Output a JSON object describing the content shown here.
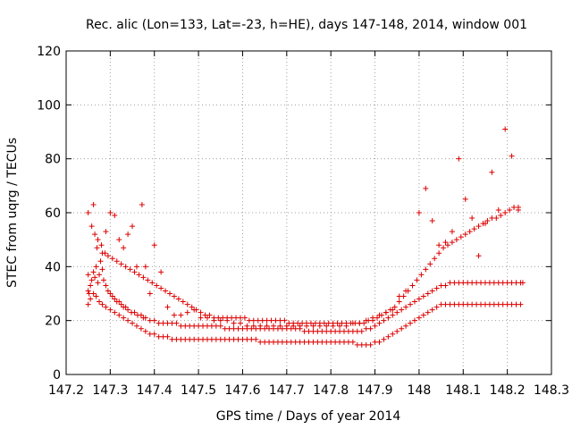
{
  "chart_data": {
    "type": "scatter",
    "title": "Rec. alic (Lon=133, Lat=-23, h=HE), days 147-148, 2014, window 001",
    "xlabel": "GPS time / Days of year 2014",
    "ylabel": "STEC from uqrg / TECUs",
    "xlim": [
      147.2,
      148.3
    ],
    "ylim": [
      0,
      120
    ],
    "xticks": [
      "147.2",
      "147.3",
      "147.4",
      "147.5",
      "147.6",
      "147.7",
      "147.8",
      "147.9",
      "148",
      "148.1",
      "148.2",
      "148.3"
    ],
    "yticks": [
      "0",
      "20",
      "40",
      "60",
      "80",
      "100",
      "120"
    ],
    "grid": true,
    "legend": "none",
    "marker": "plus",
    "color": "#dd0000",
    "series": [
      {
        "x": [
          147.25,
          147.252,
          147.255,
          147.258,
          147.262,
          147.265,
          147.268,
          147.272,
          147.275,
          147.278,
          147.282,
          147.285,
          147.29,
          147.295,
          147.3,
          147.305,
          147.31,
          147.315,
          147.32,
          147.325,
          147.33,
          147.335,
          147.34,
          147.348,
          147.355,
          147.362,
          147.37,
          147.375,
          147.38,
          147.39,
          147.4,
          147.41,
          147.42,
          147.43,
          147.44,
          147.45,
          147.46,
          147.47,
          147.48,
          147.49,
          147.5,
          147.51,
          147.52,
          147.53,
          147.54,
          147.55,
          147.56,
          147.57,
          147.58,
          147.59,
          147.6,
          147.61,
          147.62,
          147.63,
          147.64,
          147.65,
          147.66,
          147.67,
          147.68,
          147.69,
          147.7,
          147.71,
          147.72,
          147.73,
          147.74,
          147.75,
          147.76,
          147.77,
          147.78,
          147.79,
          147.8,
          147.81,
          147.82,
          147.83,
          147.84,
          147.85,
          147.86,
          147.87,
          147.88,
          147.89,
          147.9,
          147.91,
          147.92,
          147.93,
          147.94,
          147.95,
          147.96,
          147.97,
          147.98,
          147.99,
          148.0,
          148.01,
          148.02,
          148.03,
          148.04,
          148.05,
          148.06,
          148.07,
          148.08,
          148.09,
          148.1,
          148.11,
          148.12,
          148.13,
          148.14,
          148.15,
          148.16,
          148.17,
          148.18,
          148.19,
          148.2,
          148.21,
          148.22,
          148.23,
          148.235
        ],
        "y": [
          31,
          30,
          33,
          35,
          38,
          36,
          40,
          34,
          37,
          42,
          39,
          35,
          33,
          31,
          30,
          29,
          28,
          27,
          27,
          26,
          25,
          25,
          24,
          23,
          23,
          22,
          22,
          21,
          21,
          20,
          20,
          19,
          19,
          19,
          19,
          19,
          18,
          18,
          18,
          18,
          18,
          18,
          18,
          18,
          18,
          18,
          17,
          17,
          17,
          17,
          17,
          17,
          17,
          17,
          17,
          17,
          17,
          17,
          17,
          17,
          17,
          17,
          17,
          17,
          16,
          16,
          16,
          16,
          16,
          16,
          16,
          16,
          16,
          16,
          16,
          16,
          16,
          16,
          17,
          17,
          18,
          19,
          20,
          21,
          22,
          23,
          24,
          25,
          26,
          27,
          28,
          29,
          30,
          31,
          32,
          33,
          33,
          34,
          34,
          34,
          34,
          34,
          34,
          34,
          34,
          34,
          34,
          34,
          34,
          34,
          34,
          34,
          34,
          34,
          34
        ]
      },
      {
        "x": [
          147.25,
          147.255,
          147.262,
          147.268,
          147.275,
          147.282,
          147.29,
          147.3,
          147.31,
          147.32,
          147.33,
          147.34,
          147.35,
          147.36,
          147.37,
          147.38,
          147.39,
          147.4,
          147.41,
          147.42,
          147.43,
          147.44,
          147.45,
          147.46,
          147.47,
          147.48,
          147.49,
          147.5,
          147.51,
          147.52,
          147.53,
          147.54,
          147.55,
          147.56,
          147.57,
          147.58,
          147.59,
          147.6,
          147.61,
          147.62,
          147.63,
          147.64,
          147.65,
          147.66,
          147.67,
          147.68,
          147.69,
          147.7,
          147.71,
          147.72,
          147.73,
          147.74,
          147.75,
          147.76,
          147.77,
          147.78,
          147.79,
          147.8,
          147.81,
          147.82,
          147.83,
          147.84,
          147.85,
          147.86,
          147.87,
          147.88,
          147.89,
          147.9,
          147.91,
          147.92,
          147.93,
          147.94,
          147.95,
          147.96,
          147.97,
          147.98,
          147.99,
          148.0,
          148.01,
          148.02,
          148.03,
          148.04,
          148.05,
          148.06,
          148.07,
          148.08,
          148.09,
          148.1,
          148.11,
          148.12,
          148.13,
          148.14,
          148.15,
          148.16,
          148.17,
          148.18,
          148.19,
          148.2,
          148.21,
          148.22,
          148.23
        ],
        "y": [
          26,
          28,
          30,
          29,
          27,
          26,
          25,
          24,
          23,
          22,
          21,
          20,
          19,
          18,
          17,
          16,
          15,
          15,
          14,
          14,
          14,
          13,
          13,
          13,
          13,
          13,
          13,
          13,
          13,
          13,
          13,
          13,
          13,
          13,
          13,
          13,
          13,
          13,
          13,
          13,
          13,
          12,
          12,
          12,
          12,
          12,
          12,
          12,
          12,
          12,
          12,
          12,
          12,
          12,
          12,
          12,
          12,
          12,
          12,
          12,
          12,
          12,
          12,
          11,
          11,
          11,
          11,
          12,
          12,
          13,
          14,
          15,
          16,
          17,
          18,
          19,
          20,
          21,
          22,
          23,
          24,
          25,
          26,
          26,
          26,
          26,
          26,
          26,
          26,
          26,
          26,
          26,
          26,
          26,
          26,
          26,
          26,
          26,
          26,
          26,
          26
        ]
      },
      {
        "x": [
          147.25,
          147.258,
          147.265,
          147.272,
          147.28,
          147.288,
          147.295,
          147.305,
          147.315,
          147.325,
          147.335,
          147.345,
          147.355,
          147.365,
          147.375,
          147.385,
          147.395,
          147.405,
          147.415,
          147.425,
          147.435,
          147.445,
          147.455,
          147.465,
          147.475,
          147.485,
          147.495,
          147.505,
          147.515,
          147.525,
          147.535,
          147.545,
          147.555,
          147.565,
          147.575,
          147.585,
          147.595,
          147.605,
          147.615,
          147.625,
          147.635,
          147.645,
          147.655,
          147.665,
          147.675,
          147.685,
          147.695,
          147.705,
          147.715,
          147.725,
          147.735,
          147.745,
          147.755,
          147.765,
          147.775,
          147.785,
          147.795,
          147.805,
          147.815,
          147.825,
          147.835,
          147.845,
          147.855,
          147.865,
          147.875,
          147.885,
          147.895,
          147.905,
          147.915,
          147.925,
          147.935,
          147.945,
          147.955,
          147.965,
          147.975,
          147.985,
          147.995,
          148.005,
          148.015,
          148.025,
          148.035,
          148.045,
          148.055,
          148.065,
          148.075,
          148.085,
          148.095,
          148.105,
          148.115,
          148.125,
          148.135,
          148.145,
          148.155,
          148.165,
          148.175,
          148.185,
          148.195,
          148.205,
          148.215,
          148.225
        ],
        "y": [
          60,
          55,
          52,
          50,
          48,
          45,
          44,
          43,
          42,
          41,
          40,
          39,
          38,
          37,
          36,
          35,
          34,
          33,
          32,
          31,
          30,
          29,
          28,
          27,
          26,
          25,
          24,
          23,
          22,
          22,
          21,
          21,
          21,
          21,
          21,
          21,
          21,
          21,
          20,
          20,
          20,
          20,
          20,
          20,
          20,
          20,
          20,
          19,
          19,
          19,
          19,
          19,
          19,
          19,
          19,
          19,
          19,
          19,
          19,
          19,
          19,
          19,
          19,
          19,
          19,
          20,
          20,
          21,
          22,
          23,
          24,
          25,
          27,
          29,
          31,
          33,
          35,
          37,
          39,
          41,
          43,
          45,
          47,
          48,
          49,
          50,
          51,
          52,
          53,
          54,
          55,
          56,
          57,
          58,
          58,
          59,
          60,
          61,
          62,
          62
        ]
      },
      {
        "x": [
          147.25,
          147.262,
          147.27,
          147.282,
          147.29,
          147.3,
          147.31,
          147.32,
          147.33,
          147.34,
          147.35,
          147.36,
          147.372,
          147.38,
          147.39,
          147.4,
          147.415,
          147.43,
          147.445,
          147.46,
          147.475,
          147.49,
          147.505,
          147.52,
          147.535,
          147.55,
          147.565,
          147.58,
          147.595,
          147.61,
          147.625,
          147.64,
          147.655,
          147.67,
          147.685,
          147.7,
          147.715,
          147.73,
          147.745,
          147.76,
          147.775,
          147.79,
          147.805,
          147.82,
          147.835,
          147.85,
          147.865,
          147.88,
          147.895,
          147.91,
          147.925,
          147.94,
          147.955,
          147.97,
          147.985,
          148.0,
          148.015,
          148.03,
          148.045,
          148.06,
          148.075,
          148.09,
          148.105,
          148.12,
          148.135,
          148.15,
          148.165,
          148.18,
          148.195,
          148.21,
          148.225
        ],
        "y": [
          37,
          63,
          47,
          45,
          53,
          60,
          59,
          50,
          47,
          52,
          55,
          40,
          63,
          40,
          30,
          48,
          38,
          25,
          22,
          22,
          23,
          24,
          21,
          21,
          20,
          20,
          20,
          19,
          19,
          18,
          18,
          18,
          18,
          18,
          18,
          18,
          18,
          18,
          18,
          18,
          18,
          18,
          18,
          18,
          18,
          19,
          19,
          20,
          21,
          22,
          23,
          24,
          29,
          31,
          33,
          60,
          69,
          57,
          48,
          49,
          53,
          80,
          65,
          58,
          44,
          56,
          75,
          61,
          91,
          81,
          61
        ]
      }
    ]
  }
}
